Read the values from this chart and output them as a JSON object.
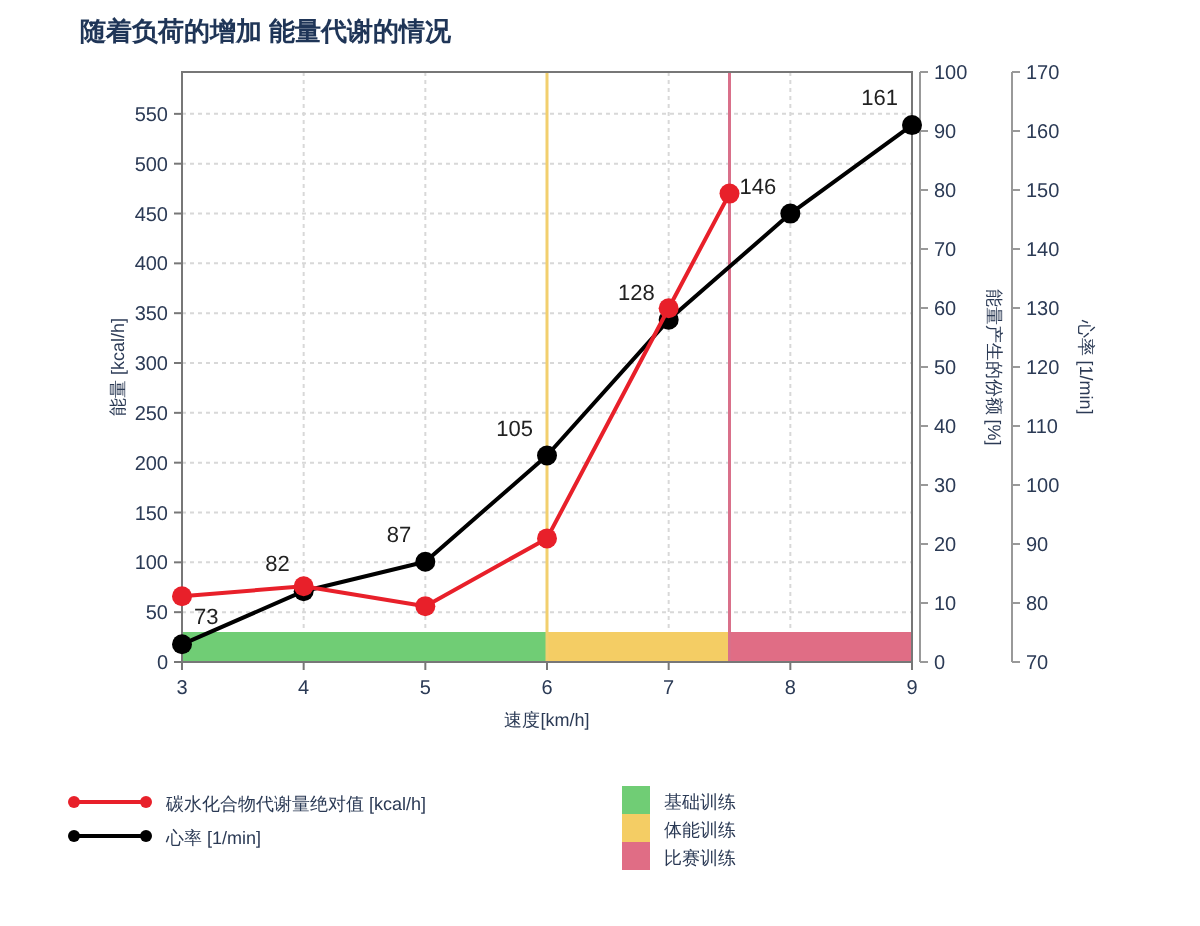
{
  "chart_data": {
    "type": "line",
    "title": "随着负荷的增加 能量代谢的情况",
    "xlabel": "速度[km/h]",
    "ylabel": "能量 [kcal/h]",
    "y2label": "能量产生的份额 [%]",
    "y3label": "心率 [1/min]",
    "xlim": [
      3,
      9
    ],
    "xticks": [
      3,
      4,
      5,
      6,
      7,
      8,
      9
    ],
    "ylim": [
      0,
      592
    ],
    "yticks": [
      0,
      50,
      100,
      150,
      200,
      250,
      300,
      350,
      400,
      450,
      500,
      550
    ],
    "y2lim": [
      0,
      100
    ],
    "y2ticks": [
      0,
      10,
      20,
      30,
      40,
      50,
      60,
      70,
      80,
      90,
      100
    ],
    "y3lim": [
      70,
      170
    ],
    "y3ticks": [
      70,
      80,
      90,
      100,
      110,
      120,
      130,
      140,
      150,
      160,
      170
    ],
    "grid": true,
    "legend": "bottom",
    "marker": "circle",
    "series": [
      {
        "name": "碳水化合物代谢量绝对值 [kcal/h]",
        "color": "#e8202a",
        "x": [
          3,
          4,
          5,
          6,
          7,
          7.5
        ],
        "values": [
          66,
          76,
          56,
          124,
          355,
          470
        ]
      },
      {
        "name": "心率 [1/min]",
        "color": "#000000",
        "axis": "y3",
        "x": [
          3,
          4,
          5,
          6,
          7,
          8,
          9
        ],
        "values": [
          73,
          82,
          87,
          105,
          128,
          146,
          161
        ],
        "value_labels": [
          "73",
          "82",
          "87",
          "105",
          "128",
          "146",
          "161"
        ]
      }
    ],
    "bands": [
      {
        "axis": "x",
        "from": 3,
        "to": 6,
        "label": "基础训练",
        "color": "#70cd75"
      },
      {
        "axis": "x",
        "from": 6,
        "to": 7.5,
        "label": "体能训练",
        "color": "#f4cd64"
      },
      {
        "axis": "x",
        "from": 7.5,
        "to": 9,
        "label": "比赛训练",
        "color": "#e06d85"
      }
    ],
    "ref_lines": [
      {
        "axis": "x",
        "value": 6,
        "color": "#f2cf6e"
      },
      {
        "axis": "x",
        "value": 7.5,
        "color": "#d9708a"
      }
    ]
  }
}
